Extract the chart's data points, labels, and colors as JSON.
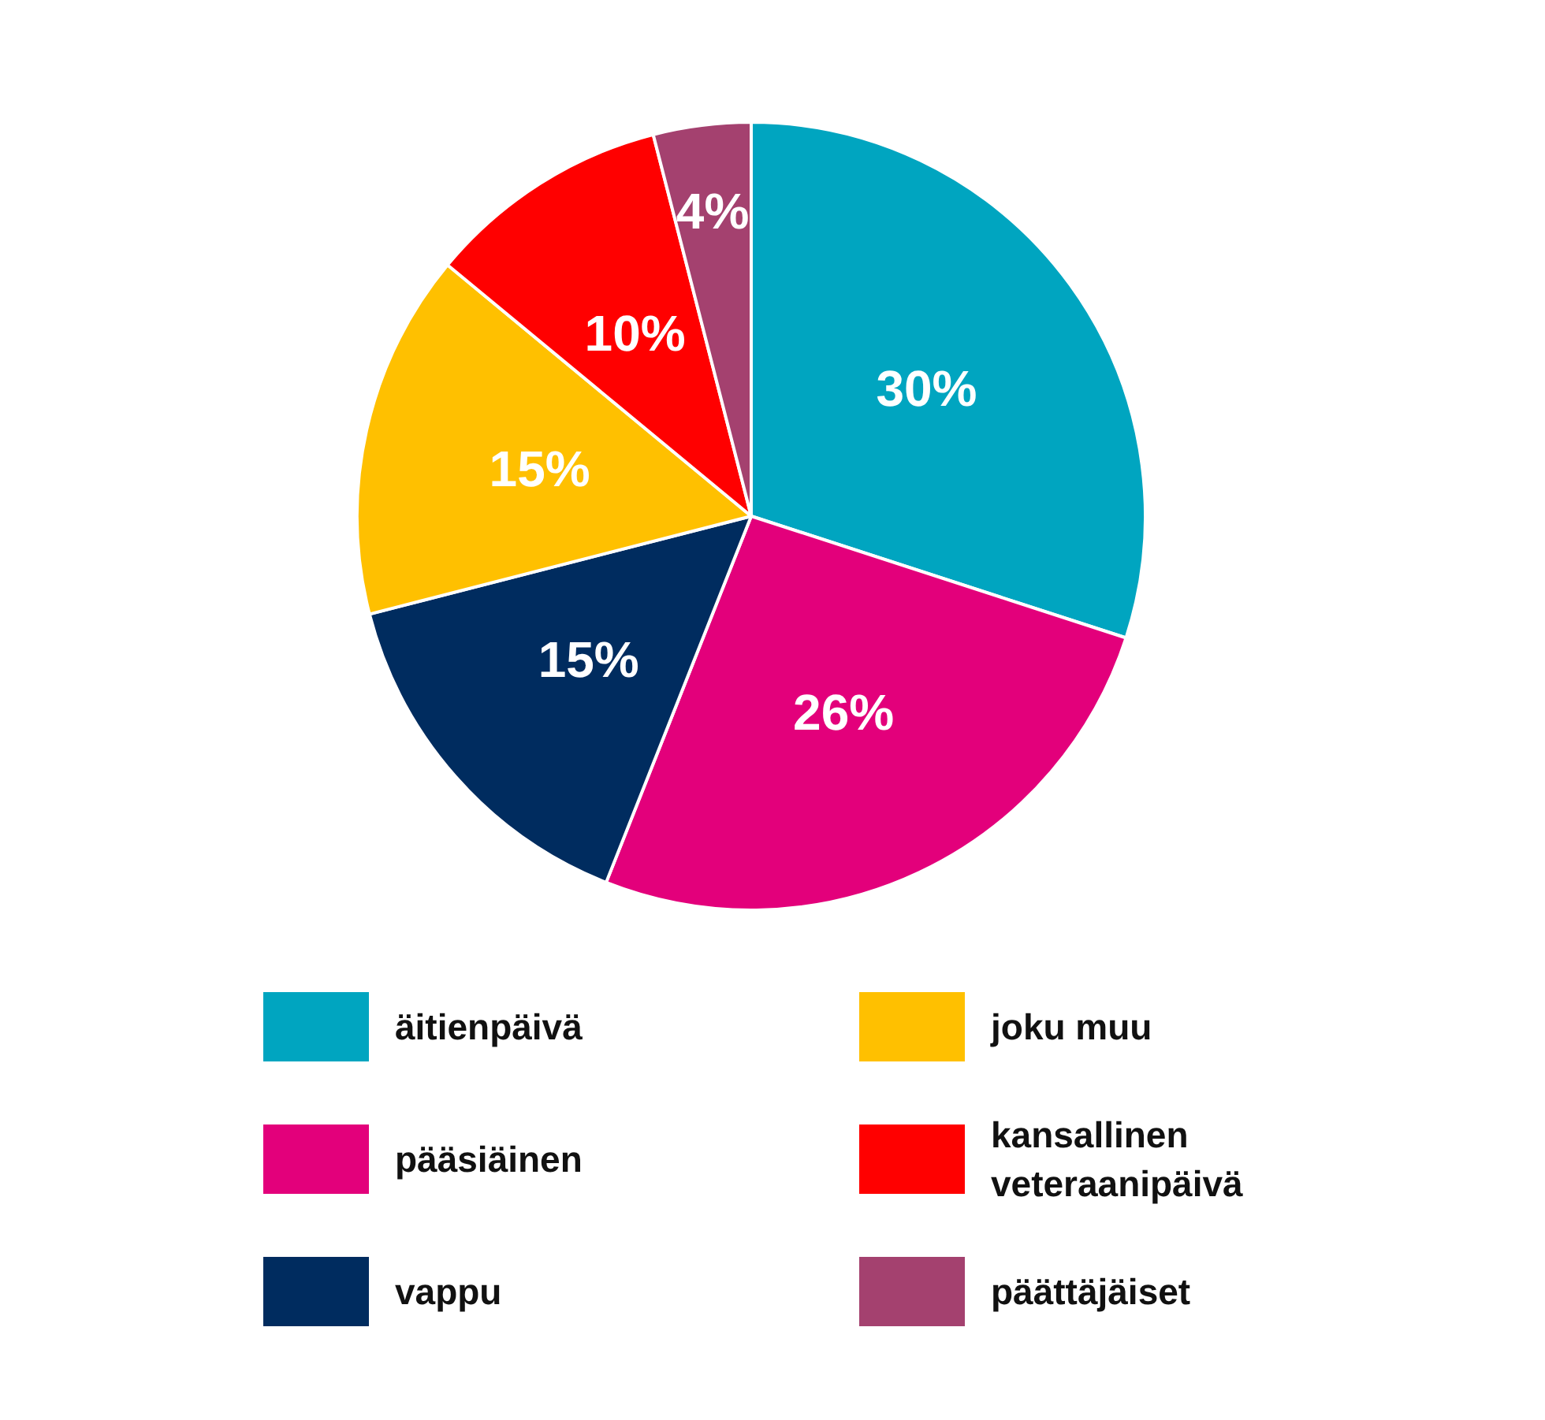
{
  "chart_data": {
    "type": "pie",
    "categories": [
      "äitienpäivä",
      "pääsiäinen",
      "vappu",
      "joku muu",
      "kansallinen veteraanipäivä",
      "päättäjäiset"
    ],
    "values": [
      30,
      26,
      15,
      15,
      10,
      4
    ],
    "colors": [
      "#00a5c0",
      "#e3007b",
      "#002c5f",
      "#ffc000",
      "#ff0000",
      "#a4416f"
    ],
    "value_labels": [
      "30%",
      "26%",
      "15%",
      "15%",
      "10%",
      "4%"
    ],
    "legend": "bottom"
  }
}
